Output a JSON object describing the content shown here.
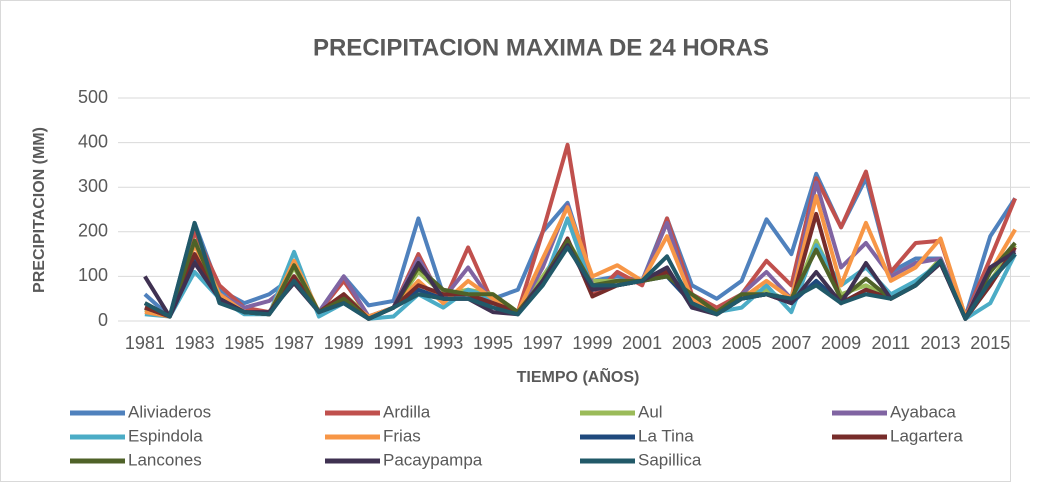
{
  "chart_data": {
    "type": "line",
    "title": "PRECIPITACION MAXIMA DE 24 HORAS",
    "x_label": "TIEMPO (AÑOS)",
    "y_label": "PRECIPITACION (MM)",
    "x": [
      1981,
      1982,
      1983,
      1984,
      1985,
      1986,
      1987,
      1988,
      1989,
      1990,
      1991,
      1992,
      1993,
      1994,
      1995,
      1996,
      1997,
      1998,
      1999,
      2000,
      2001,
      2002,
      2003,
      2004,
      2005,
      2006,
      2007,
      2008,
      2009,
      2010,
      2011,
      2012,
      2013,
      2014,
      2015,
      2016
    ],
    "xlim": [
      1980,
      2017
    ],
    "xticks": [
      1981,
      1983,
      1985,
      1987,
      1989,
      1991,
      1993,
      1995,
      1997,
      1999,
      2001,
      2003,
      2005,
      2007,
      2009,
      2011,
      2013,
      2015
    ],
    "ylim": [
      0,
      500
    ],
    "yticks": [
      0,
      100,
      200,
      300,
      400,
      500
    ],
    "grid": true,
    "legend": "bottom",
    "series": [
      {
        "name": "Aliviaderos",
        "color": "#4f81bd",
        "values": [
          60,
          10,
          220,
          70,
          40,
          60,
          100,
          20,
          100,
          35,
          45,
          230,
          60,
          50,
          50,
          70,
          200,
          265,
          90,
          100,
          90,
          230,
          80,
          50,
          90,
          228,
          150,
          330,
          210,
          320,
          110,
          140,
          140,
          10,
          190,
          275
        ]
      },
      {
        "name": "Ardilla",
        "color": "#c0504d",
        "values": [
          30,
          10,
          200,
          80,
          30,
          20,
          100,
          20,
          90,
          10,
          30,
          150,
          40,
          165,
          40,
          20,
          200,
          395,
          55,
          110,
          80,
          230,
          60,
          30,
          60,
          135,
          80,
          320,
          210,
          335,
          110,
          175,
          180,
          10,
          140,
          275
        ]
      },
      {
        "name": "Aul",
        "color": "#9bbb59",
        "values": [
          25,
          10,
          180,
          60,
          20,
          15,
          120,
          20,
          60,
          10,
          30,
          110,
          60,
          70,
          60,
          20,
          100,
          180,
          90,
          90,
          90,
          100,
          50,
          20,
          60,
          70,
          40,
          180,
          60,
          80,
          50,
          80,
          140,
          10,
          90,
          170
        ]
      },
      {
        "name": "Ayabaca",
        "color": "#8064a2",
        "values": [
          40,
          10,
          150,
          60,
          30,
          45,
          90,
          20,
          100,
          10,
          30,
          140,
          50,
          120,
          40,
          20,
          120,
          260,
          80,
          80,
          90,
          220,
          40,
          20,
          60,
          110,
          50,
          310,
          120,
          175,
          100,
          130,
          140,
          10,
          120,
          160
        ]
      },
      {
        "name": "Espindola",
        "color": "#4bacc6",
        "values": [
          15,
          10,
          110,
          50,
          15,
          15,
          155,
          10,
          40,
          5,
          10,
          60,
          30,
          70,
          50,
          15,
          80,
          230,
          70,
          80,
          90,
          120,
          30,
          20,
          30,
          80,
          20,
          170,
          80,
          120,
          60,
          90,
          130,
          5,
          40,
          150
        ]
      },
      {
        "name": "Frias",
        "color": "#f79646",
        "values": [
          20,
          10,
          170,
          60,
          20,
          15,
          135,
          20,
          50,
          10,
          30,
          90,
          40,
          90,
          50,
          20,
          140,
          255,
          100,
          125,
          90,
          190,
          50,
          20,
          50,
          90,
          50,
          280,
          80,
          220,
          90,
          120,
          185,
          10,
          110,
          205
        ]
      },
      {
        "name": "La Tina",
        "color": "#1f497d",
        "values": [
          30,
          10,
          140,
          50,
          20,
          15,
          90,
          20,
          50,
          5,
          30,
          70,
          50,
          50,
          40,
          20,
          80,
          170,
          80,
          80,
          90,
          100,
          40,
          15,
          50,
          60,
          40,
          90,
          40,
          70,
          50,
          80,
          130,
          5,
          90,
          150
        ]
      },
      {
        "name": "Lagartera",
        "color": "#772c2a",
        "values": [
          30,
          10,
          150,
          50,
          20,
          15,
          100,
          20,
          60,
          5,
          30,
          80,
          60,
          60,
          40,
          20,
          90,
          185,
          55,
          80,
          90,
          110,
          40,
          15,
          50,
          60,
          40,
          240,
          40,
          70,
          50,
          80,
          130,
          5,
          80,
          165
        ]
      },
      {
        "name": "Lancones",
        "color": "#4f6228",
        "values": [
          40,
          10,
          180,
          50,
          20,
          15,
          125,
          20,
          50,
          5,
          30,
          120,
          70,
          60,
          60,
          20,
          90,
          180,
          80,
          90,
          90,
          100,
          60,
          20,
          60,
          60,
          50,
          160,
          50,
          95,
          50,
          80,
          135,
          5,
          110,
          175
        ]
      },
      {
        "name": "Pacaypampa",
        "color": "#3f3151",
        "values": [
          100,
          10,
          130,
          50,
          20,
          20,
          85,
          20,
          40,
          5,
          30,
          130,
          50,
          50,
          20,
          15,
          90,
          170,
          70,
          80,
          90,
          120,
          30,
          15,
          50,
          60,
          40,
          110,
          40,
          130,
          50,
          80,
          130,
          5,
          120,
          155
        ]
      },
      {
        "name": "Sapillica",
        "color": "#215968",
        "values": [
          40,
          10,
          220,
          40,
          20,
          15,
          90,
          20,
          40,
          5,
          30,
          60,
          50,
          50,
          30,
          15,
          80,
          165,
          80,
          80,
          90,
          145,
          40,
          15,
          50,
          60,
          50,
          80,
          40,
          60,
          50,
          80,
          135,
          5,
          90,
          150
        ]
      }
    ]
  }
}
